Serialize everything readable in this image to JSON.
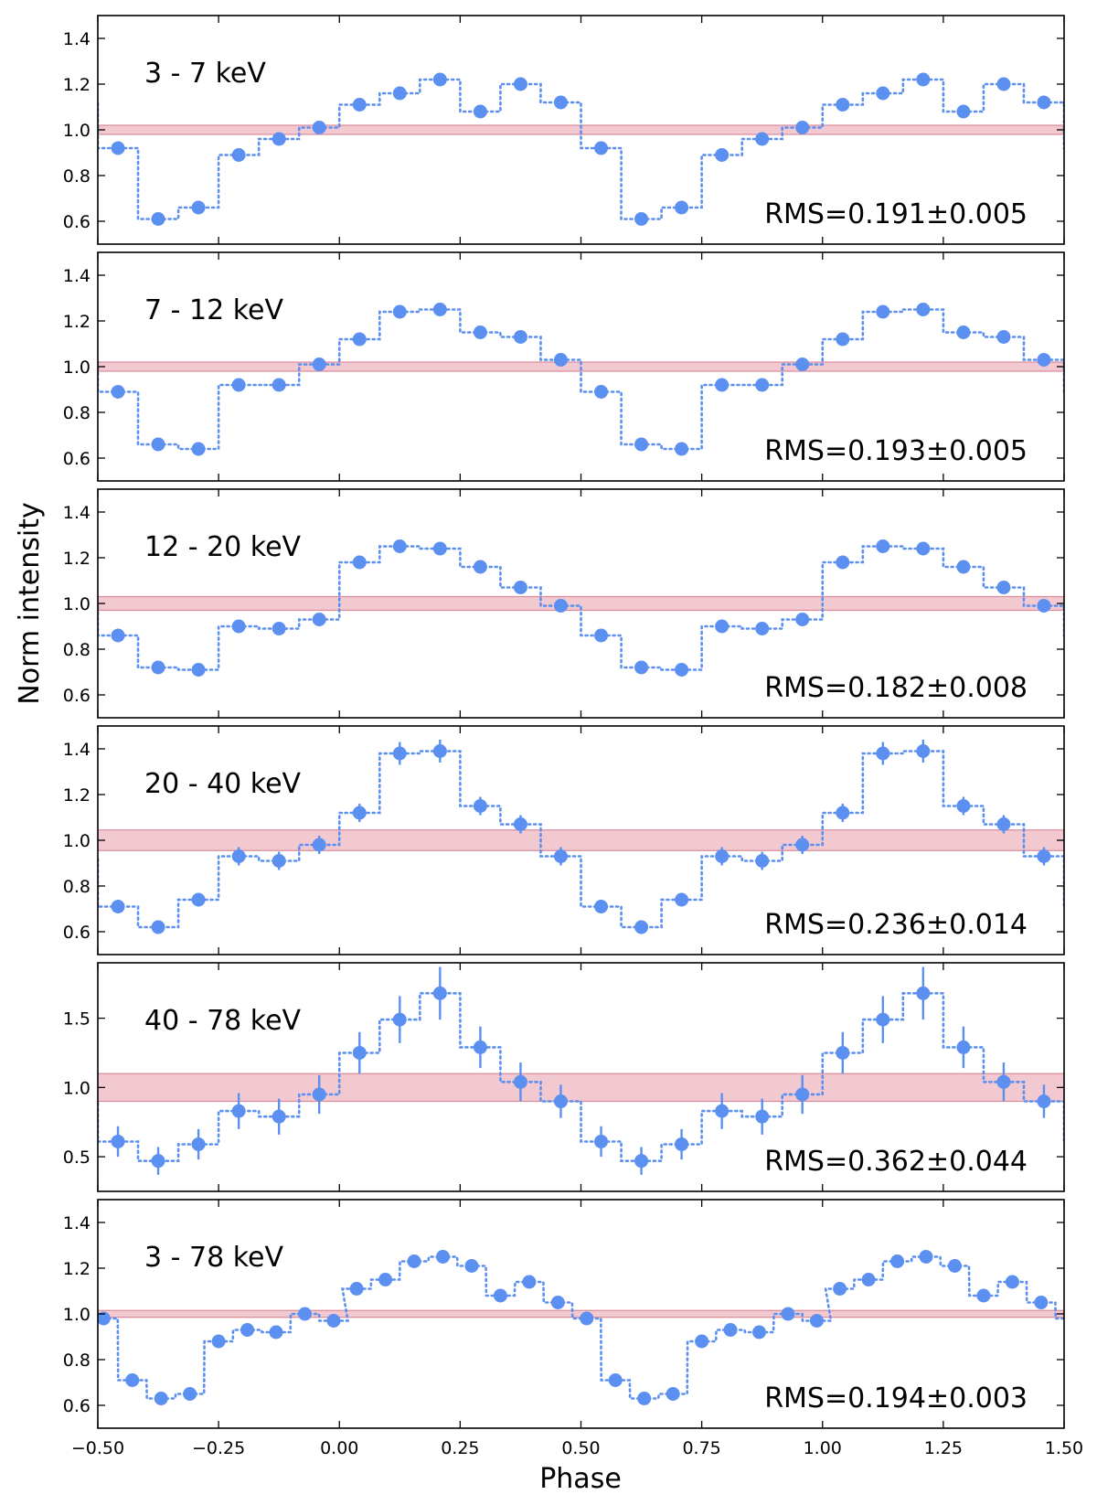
{
  "chart_data": {
    "type": "line",
    "xlabel": "Phase",
    "ylabel": "Norm intensity",
    "xlim": [
      -0.5,
      1.5
    ],
    "xticks": [
      -0.5,
      -0.25,
      0.0,
      0.25,
      0.5,
      0.75,
      1.0,
      1.25,
      1.5
    ],
    "xtick_labels": [
      "−0.50",
      "−0.25",
      "0.00",
      "0.25",
      "0.50",
      "0.75",
      "1.00",
      "1.25",
      "1.50"
    ],
    "marker_color": "#5b8ff0",
    "band_color": "#f2c9d0",
    "band_edge_color": "#d98a99",
    "panels": [
      {
        "label": "3 - 7 keV",
        "rms": "RMS=0.191±0.005",
        "ylim": [
          0.5,
          1.5
        ],
        "yticks": [
          0.6,
          0.8,
          1.0,
          1.2,
          1.4
        ],
        "ytick_labels": [
          "0.6",
          "0.8",
          "1.0",
          "1.2",
          "1.4"
        ],
        "band": [
          0.98,
          1.02
        ],
        "phase": [
          0.0417,
          0.125,
          0.2083,
          0.2917,
          0.375,
          0.4583,
          0.5417,
          0.625,
          0.7083,
          0.7917,
          0.875,
          0.9583
        ],
        "values": [
          1.11,
          1.16,
          1.22,
          1.08,
          1.2,
          1.12,
          0.92,
          0.61,
          0.66,
          0.89,
          0.96,
          1.01
        ],
        "errors": [
          0.005,
          0.005,
          0.005,
          0.005,
          0.005,
          0.005,
          0.005,
          0.005,
          0.005,
          0.005,
          0.005,
          0.005
        ]
      },
      {
        "label": "7 - 12 keV",
        "rms": "RMS=0.193±0.005",
        "ylim": [
          0.5,
          1.5
        ],
        "yticks": [
          0.6,
          0.8,
          1.0,
          1.2,
          1.4
        ],
        "ytick_labels": [
          "0.6",
          "0.8",
          "1.0",
          "1.2",
          "1.4"
        ],
        "band": [
          0.98,
          1.02
        ],
        "phase": [
          0.0417,
          0.125,
          0.2083,
          0.2917,
          0.375,
          0.4583,
          0.5417,
          0.625,
          0.7083,
          0.7917,
          0.875,
          0.9583
        ],
        "values": [
          1.12,
          1.24,
          1.25,
          1.15,
          1.13,
          1.03,
          0.89,
          0.66,
          0.64,
          0.92,
          0.92,
          1.01
        ],
        "errors": [
          0.005,
          0.005,
          0.005,
          0.005,
          0.005,
          0.005,
          0.005,
          0.005,
          0.005,
          0.005,
          0.005,
          0.005
        ]
      },
      {
        "label": "12 - 20 keV",
        "rms": "RMS=0.182±0.008",
        "ylim": [
          0.5,
          1.5
        ],
        "yticks": [
          0.6,
          0.8,
          1.0,
          1.2,
          1.4
        ],
        "ytick_labels": [
          "0.6",
          "0.8",
          "1.0",
          "1.2",
          "1.4"
        ],
        "band": [
          0.97,
          1.03
        ],
        "phase": [
          0.0417,
          0.125,
          0.2083,
          0.2917,
          0.375,
          0.4583,
          0.5417,
          0.625,
          0.7083,
          0.7917,
          0.875,
          0.9583
        ],
        "values": [
          1.18,
          1.25,
          1.24,
          1.16,
          1.07,
          0.99,
          0.86,
          0.72,
          0.71,
          0.9,
          0.89,
          0.93
        ],
        "errors": [
          0.008,
          0.008,
          0.008,
          0.008,
          0.008,
          0.008,
          0.008,
          0.008,
          0.008,
          0.008,
          0.008,
          0.008
        ]
      },
      {
        "label": "20 - 40 keV",
        "rms": "RMS=0.236±0.014",
        "ylim": [
          0.5,
          1.5
        ],
        "yticks": [
          0.6,
          0.8,
          1.0,
          1.2,
          1.4
        ],
        "ytick_labels": [
          "0.6",
          "0.8",
          "1.0",
          "1.2",
          "1.4"
        ],
        "band": [
          0.955,
          1.045
        ],
        "phase": [
          0.0417,
          0.125,
          0.2083,
          0.2917,
          0.375,
          0.4583,
          0.5417,
          0.625,
          0.7083,
          0.7917,
          0.875,
          0.9583
        ],
        "values": [
          1.12,
          1.38,
          1.39,
          1.15,
          1.07,
          0.93,
          0.71,
          0.62,
          0.74,
          0.93,
          0.91,
          0.98
        ],
        "errors": [
          0.04,
          0.05,
          0.05,
          0.04,
          0.04,
          0.04,
          0.03,
          0.03,
          0.03,
          0.04,
          0.04,
          0.04
        ]
      },
      {
        "label": "40 - 78 keV",
        "rms": "RMS=0.362±0.044",
        "ylim": [
          0.25,
          1.9
        ],
        "yticks": [
          0.5,
          1.0,
          1.5
        ],
        "ytick_labels": [
          "0.5",
          "1.0",
          "1.5"
        ],
        "band": [
          0.9,
          1.1
        ],
        "phase": [
          0.0417,
          0.125,
          0.2083,
          0.2917,
          0.375,
          0.4583,
          0.5417,
          0.625,
          0.7083,
          0.7917,
          0.875,
          0.9583
        ],
        "values": [
          1.25,
          1.49,
          1.68,
          1.29,
          1.04,
          0.9,
          0.61,
          0.47,
          0.59,
          0.83,
          0.79,
          0.95
        ],
        "errors": [
          0.15,
          0.17,
          0.19,
          0.15,
          0.14,
          0.12,
          0.11,
          0.1,
          0.11,
          0.13,
          0.13,
          0.14
        ]
      },
      {
        "label": "3 - 78 keV",
        "rms": "RMS=0.194±0.003",
        "ylim": [
          0.5,
          1.5
        ],
        "yticks": [
          0.6,
          0.8,
          1.0,
          1.2,
          1.4
        ],
        "ytick_labels": [
          "0.6",
          "0.8",
          "1.0",
          "1.2",
          "1.4"
        ],
        "band": [
          0.985,
          1.015
        ],
        "phase": [
          0.0357,
          0.0952,
          0.1548,
          0.2143,
          0.2738,
          0.3333,
          0.3929,
          0.4524,
          0.5119,
          0.5714,
          0.631,
          0.6905,
          0.75,
          0.8095,
          0.869,
          0.9286,
          0.9881
        ],
        "values": [
          1.11,
          1.15,
          1.23,
          1.25,
          1.21,
          1.08,
          1.14,
          1.05,
          0.98,
          0.71,
          0.63,
          0.65,
          0.88,
          0.93,
          0.92,
          1.0,
          0.97
        ],
        "errors": [
          0.003,
          0.003,
          0.003,
          0.003,
          0.003,
          0.003,
          0.003,
          0.003,
          0.003,
          0.003,
          0.003,
          0.003,
          0.003,
          0.003,
          0.003,
          0.003,
          0.003
        ]
      }
    ]
  }
}
